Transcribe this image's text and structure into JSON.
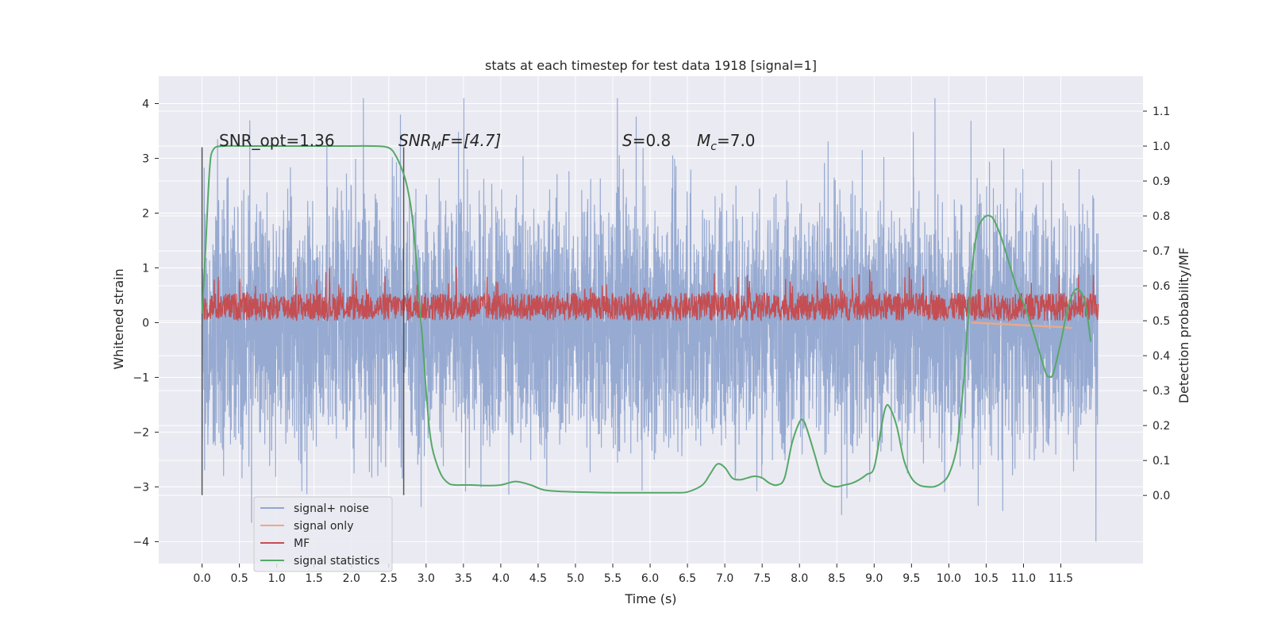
{
  "chart_data": {
    "type": "line",
    "title": "stats at each timestep for test data 1918 [signal=1]",
    "xlabel": "Time (s)",
    "ylabel": "Whitened strain",
    "ylabel_right": "Detection probability/MF",
    "xlim": [
      -0.58,
      12.6
    ],
    "ylim": [
      -4.4,
      4.5
    ],
    "ylim_right": [
      -0.195,
      1.2
    ],
    "x_ticks": [
      0.0,
      0.5,
      1.0,
      1.5,
      2.0,
      2.5,
      3.0,
      3.5,
      4.0,
      4.5,
      5.0,
      5.5,
      6.0,
      6.5,
      7.0,
      7.5,
      8.0,
      8.5,
      9.0,
      9.5,
      10.0,
      10.5,
      11.0,
      11.5
    ],
    "x_tick_labels": [
      "0.0",
      "0.5",
      "1.0",
      "1.5",
      "2.0",
      "2.5",
      "3.0",
      "3.5",
      "4.0",
      "4.5",
      "5.0",
      "5.5",
      "6.0",
      "6.5",
      "7.0",
      "7.5",
      "8.0",
      "8.5",
      "9.0",
      "9.5",
      "10.0",
      "10.5",
      "11.0",
      "11.5"
    ],
    "y_ticks": [
      -4,
      -3,
      -2,
      -1,
      0,
      1,
      2,
      3,
      4
    ],
    "y_tick_labels": [
      "−4",
      "−3",
      "−2",
      "−1",
      "0",
      "1",
      "2",
      "3",
      "4"
    ],
    "y_right_ticks": [
      0.0,
      0.1,
      0.2,
      0.3,
      0.4,
      0.5,
      0.6,
      0.7,
      0.8,
      0.9,
      1.0,
      1.1
    ],
    "y_right_tick_labels": [
      "0.0",
      "0.1",
      "0.2",
      "0.3",
      "0.4",
      "0.5",
      "0.6",
      "0.7",
      "0.8",
      "0.9",
      "1.0",
      "1.1"
    ],
    "grid": true,
    "legend_position": "lower-left",
    "annotations": [
      {
        "text": "SNR_opt=1.36",
        "x": 0.2,
        "y": 3.3
      },
      {
        "text": "SNR",
        "sub": "M",
        "rest": "F=[4.7]",
        "italic": true,
        "x": 2.62,
        "y": 3.3
      },
      {
        "text": "S",
        "rest": "=0.8",
        "italic": true,
        "x": 5.6,
        "y": 3.3
      },
      {
        "text": "M",
        "sub": "c",
        "rest": "=7.0",
        "italic": true,
        "x": 6.6,
        "y": 3.3
      }
    ],
    "vlines": [
      {
        "x": 0.0,
        "ymin": -3.15,
        "ymax": 3.2
      },
      {
        "x": 2.7,
        "ymin": -3.15,
        "ymax": 3.2
      }
    ],
    "series": [
      {
        "name": "signal+ noise",
        "color": "#92a7cf",
        "x_range": [
          0.0,
          12.0
        ],
        "typical_amplitude": 1.3,
        "max": 4.1,
        "min": -4.0
      },
      {
        "name": "signal only",
        "color": "#e8a98a",
        "x": [
          10.3,
          10.6,
          10.9,
          11.2,
          11.5,
          11.65
        ],
        "y": [
          0.0,
          -0.02,
          -0.04,
          -0.06,
          -0.08,
          -0.1
        ]
      },
      {
        "name": "MF",
        "color": "#c44e52",
        "axis": "right",
        "x_range": [
          0.0,
          12.0
        ],
        "typical_range": [
          0.5,
          0.58
        ],
        "max": 0.66
      },
      {
        "name": "signal statistics",
        "color": "#55a868",
        "axis": "right",
        "x": [
          0.0,
          0.05,
          0.1,
          0.15,
          0.3,
          0.6,
          1.0,
          1.5,
          2.0,
          2.3,
          2.5,
          2.6,
          2.7,
          2.75,
          2.8,
          2.85,
          2.9,
          2.95,
          3.0,
          3.05,
          3.1,
          3.2,
          3.3,
          3.4,
          3.6,
          3.8,
          4.0,
          4.2,
          4.4,
          4.6,
          5.0,
          5.5,
          6.0,
          6.3,
          6.5,
          6.7,
          6.8,
          6.9,
          7.0,
          7.1,
          7.2,
          7.3,
          7.4,
          7.5,
          7.6,
          7.7,
          7.8,
          7.9,
          8.0,
          8.05,
          8.1,
          8.2,
          8.3,
          8.4,
          8.5,
          8.6,
          8.7,
          8.8,
          8.9,
          9.0,
          9.1,
          9.15,
          9.2,
          9.3,
          9.4,
          9.5,
          9.6,
          9.7,
          9.8,
          9.9,
          10.0,
          10.1,
          10.15,
          10.2,
          10.25,
          10.3,
          10.35,
          10.4,
          10.45,
          10.5,
          10.55,
          10.6,
          10.7,
          10.8,
          10.9,
          11.0,
          11.1,
          11.2,
          11.3,
          11.35,
          11.4,
          11.5,
          11.6,
          11.7,
          11.8,
          11.85,
          11.9
        ],
        "y": [
          0.52,
          0.72,
          0.93,
          0.99,
          1.0,
          1.0,
          1.0,
          1.0,
          1.0,
          1.0,
          0.995,
          0.97,
          0.92,
          0.88,
          0.82,
          0.72,
          0.58,
          0.45,
          0.3,
          0.18,
          0.12,
          0.06,
          0.035,
          0.03,
          0.03,
          0.028,
          0.03,
          0.04,
          0.03,
          0.015,
          0.01,
          0.008,
          0.008,
          0.008,
          0.01,
          0.03,
          0.06,
          0.09,
          0.08,
          0.05,
          0.045,
          0.05,
          0.055,
          0.05,
          0.035,
          0.03,
          0.05,
          0.15,
          0.21,
          0.215,
          0.19,
          0.12,
          0.05,
          0.03,
          0.025,
          0.03,
          0.035,
          0.045,
          0.06,
          0.08,
          0.2,
          0.25,
          0.255,
          0.2,
          0.1,
          0.05,
          0.03,
          0.025,
          0.025,
          0.035,
          0.06,
          0.13,
          0.22,
          0.33,
          0.48,
          0.62,
          0.72,
          0.77,
          0.79,
          0.8,
          0.8,
          0.79,
          0.74,
          0.67,
          0.6,
          0.55,
          0.49,
          0.42,
          0.35,
          0.34,
          0.35,
          0.44,
          0.54,
          0.59,
          0.57,
          0.52,
          0.44
        ]
      }
    ]
  }
}
